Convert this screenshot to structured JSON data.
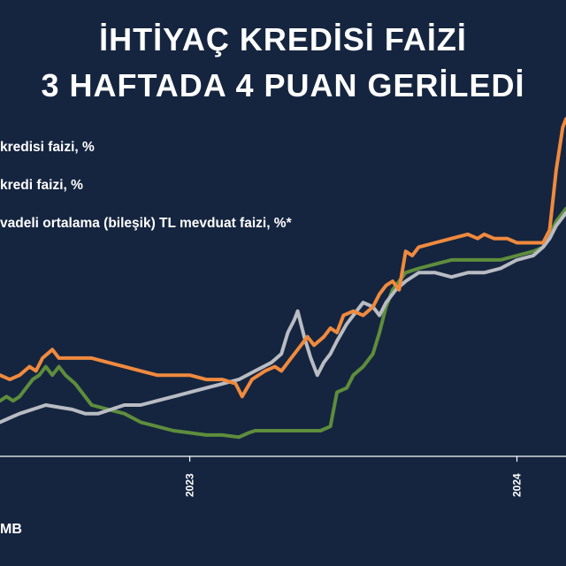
{
  "title_line_1": "İHTİYAÇ KREDİSİ FAİZİ",
  "title_line_2": "3 HAFTADA 4 PUAN GERİLEDİ",
  "legend": [
    "kredisi faizi, %",
    "kredi faizi, %",
    "vadeli ortalama (bileşik) TL mevduat faizi, %*"
  ],
  "source_text": "MB",
  "colors": {
    "background": "#15253f",
    "axis": "#ffffff",
    "series_1": "#f08a3e",
    "series_2": "#5e8d3c",
    "series_3": "#b9bcc3"
  },
  "chart_data": {
    "type": "line",
    "x_tick_labels": [
      "2023",
      "2024"
    ],
    "x_tick_positions": [
      2023.0,
      2024.0
    ],
    "xlim": [
      2022.42,
      2024.15
    ],
    "ylim": [
      3,
      85
    ],
    "grid": false,
    "legend_position": "top-left",
    "series": [
      {
        "name": "kredisi faizi, %",
        "color": "#f08a3e",
        "points": [
          [
            2022.42,
            22
          ],
          [
            2022.45,
            21
          ],
          [
            2022.48,
            22
          ],
          [
            2022.51,
            24
          ],
          [
            2022.53,
            23
          ],
          [
            2022.55,
            26
          ],
          [
            2022.58,
            28
          ],
          [
            2022.6,
            26
          ],
          [
            2022.65,
            26
          ],
          [
            2022.7,
            26
          ],
          [
            2022.75,
            25
          ],
          [
            2022.8,
            24
          ],
          [
            2022.85,
            23
          ],
          [
            2022.9,
            22
          ],
          [
            2022.95,
            22
          ],
          [
            2023.0,
            22
          ],
          [
            2023.05,
            21
          ],
          [
            2023.1,
            21
          ],
          [
            2023.14,
            20
          ],
          [
            2023.16,
            17
          ],
          [
            2023.19,
            21
          ],
          [
            2023.23,
            23
          ],
          [
            2023.26,
            24
          ],
          [
            2023.28,
            23
          ],
          [
            2023.31,
            26
          ],
          [
            2023.33,
            28
          ],
          [
            2023.36,
            31
          ],
          [
            2023.38,
            29
          ],
          [
            2023.41,
            31
          ],
          [
            2023.43,
            33
          ],
          [
            2023.45,
            32
          ],
          [
            2023.47,
            36
          ],
          [
            2023.5,
            37
          ],
          [
            2023.53,
            36
          ],
          [
            2023.56,
            38
          ],
          [
            2023.58,
            41
          ],
          [
            2023.6,
            43
          ],
          [
            2023.62,
            44
          ],
          [
            2023.64,
            42
          ],
          [
            2023.66,
            51
          ],
          [
            2023.68,
            50
          ],
          [
            2023.7,
            52
          ],
          [
            2023.75,
            53
          ],
          [
            2023.8,
            54
          ],
          [
            2023.85,
            55
          ],
          [
            2023.88,
            54
          ],
          [
            2023.9,
            55
          ],
          [
            2023.93,
            54
          ],
          [
            2023.97,
            54
          ],
          [
            2024.0,
            53
          ],
          [
            2024.04,
            53
          ],
          [
            2024.08,
            53
          ],
          [
            2024.1,
            56
          ],
          [
            2024.12,
            70
          ],
          [
            2024.14,
            80
          ],
          [
            2024.15,
            82
          ]
        ]
      },
      {
        "name": "kredi faizi, %",
        "color": "#5e8d3c",
        "points": [
          [
            2022.42,
            16
          ],
          [
            2022.44,
            17
          ],
          [
            2022.46,
            16
          ],
          [
            2022.48,
            17
          ],
          [
            2022.5,
            19
          ],
          [
            2022.52,
            21
          ],
          [
            2022.54,
            22
          ],
          [
            2022.56,
            24
          ],
          [
            2022.58,
            22
          ],
          [
            2022.6,
            24
          ],
          [
            2022.62,
            22
          ],
          [
            2022.65,
            20
          ],
          [
            2022.68,
            17
          ],
          [
            2022.7,
            15
          ],
          [
            2022.75,
            14
          ],
          [
            2022.8,
            13
          ],
          [
            2022.85,
            11
          ],
          [
            2022.9,
            10
          ],
          [
            2022.95,
            9
          ],
          [
            2023.0,
            8.5
          ],
          [
            2023.05,
            8
          ],
          [
            2023.1,
            8
          ],
          [
            2023.15,
            7.5
          ],
          [
            2023.18,
            8.5
          ],
          [
            2023.2,
            9
          ],
          [
            2023.25,
            9
          ],
          [
            2023.3,
            9
          ],
          [
            2023.35,
            9
          ],
          [
            2023.4,
            9
          ],
          [
            2023.43,
            10
          ],
          [
            2023.45,
            18
          ],
          [
            2023.48,
            19
          ],
          [
            2023.5,
            22
          ],
          [
            2023.53,
            24
          ],
          [
            2023.56,
            27
          ],
          [
            2023.58,
            32
          ],
          [
            2023.6,
            38
          ],
          [
            2023.62,
            42
          ],
          [
            2023.64,
            44
          ],
          [
            2023.66,
            46
          ],
          [
            2023.7,
            47
          ],
          [
            2023.75,
            48
          ],
          [
            2023.8,
            49
          ],
          [
            2023.85,
            49
          ],
          [
            2023.9,
            49
          ],
          [
            2023.95,
            49
          ],
          [
            2024.0,
            50
          ],
          [
            2024.05,
            51
          ],
          [
            2024.08,
            52
          ],
          [
            2024.1,
            55
          ],
          [
            2024.12,
            58
          ],
          [
            2024.14,
            60
          ],
          [
            2024.15,
            61
          ]
        ]
      },
      {
        "name": "vadeli ortalama (bileşik) TL mevduat faizi, %*",
        "color": "#b9bcc3",
        "points": [
          [
            2022.42,
            11
          ],
          [
            2022.45,
            12
          ],
          [
            2022.48,
            13
          ],
          [
            2022.52,
            14
          ],
          [
            2022.56,
            15
          ],
          [
            2022.6,
            14.5
          ],
          [
            2022.64,
            14
          ],
          [
            2022.68,
            13
          ],
          [
            2022.72,
            13
          ],
          [
            2022.76,
            14
          ],
          [
            2022.8,
            15
          ],
          [
            2022.85,
            15
          ],
          [
            2022.9,
            16
          ],
          [
            2022.95,
            17
          ],
          [
            2023.0,
            18
          ],
          [
            2023.05,
            19
          ],
          [
            2023.1,
            20
          ],
          [
            2023.15,
            21
          ],
          [
            2023.2,
            23
          ],
          [
            2023.25,
            25
          ],
          [
            2023.28,
            27
          ],
          [
            2023.3,
            32
          ],
          [
            2023.32,
            35
          ],
          [
            2023.33,
            37
          ],
          [
            2023.35,
            31
          ],
          [
            2023.37,
            26
          ],
          [
            2023.39,
            22
          ],
          [
            2023.41,
            25
          ],
          [
            2023.43,
            27
          ],
          [
            2023.45,
            30
          ],
          [
            2023.48,
            34
          ],
          [
            2023.5,
            36
          ],
          [
            2023.53,
            39
          ],
          [
            2023.56,
            38
          ],
          [
            2023.58,
            36
          ],
          [
            2023.6,
            39
          ],
          [
            2023.63,
            42
          ],
          [
            2023.66,
            44
          ],
          [
            2023.7,
            46
          ],
          [
            2023.75,
            46
          ],
          [
            2023.8,
            45
          ],
          [
            2023.85,
            46
          ],
          [
            2023.9,
            46
          ],
          [
            2023.95,
            47
          ],
          [
            2024.0,
            49
          ],
          [
            2024.05,
            50
          ],
          [
            2024.08,
            52
          ],
          [
            2024.1,
            54
          ],
          [
            2024.12,
            57
          ],
          [
            2024.14,
            59
          ],
          [
            2024.15,
            60
          ]
        ]
      }
    ]
  }
}
